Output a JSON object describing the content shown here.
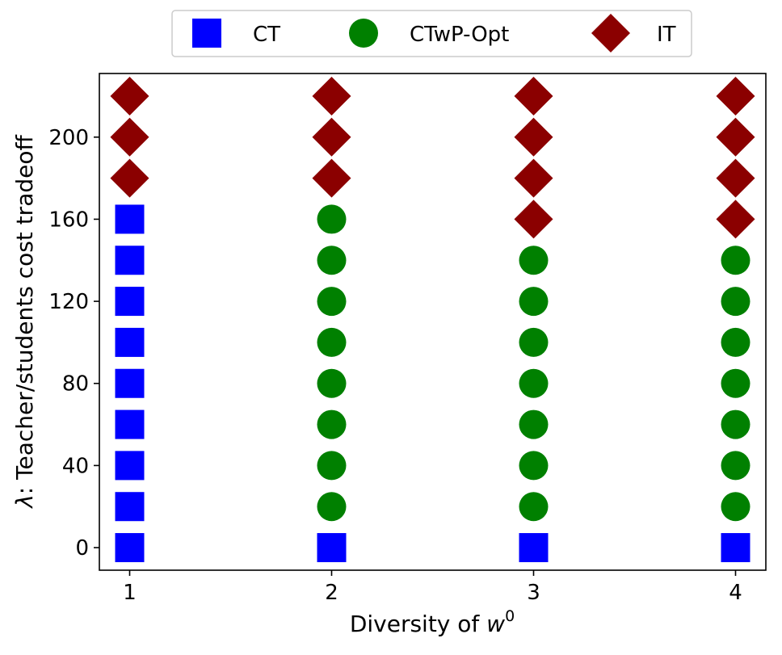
{
  "chart_data": {
    "type": "scatter",
    "title": "",
    "xlabel": {
      "prefix": "Diversity of ",
      "var": "w",
      "superscript": "0"
    },
    "ylabel": {
      "lambda": "λ",
      "rest": ": Teacher/students cost tradeoff"
    },
    "xlim": [
      0.85,
      4.15
    ],
    "ylim": [
      -11,
      231
    ],
    "x_ticks": [
      1,
      2,
      3,
      4
    ],
    "y_ticks": [
      0,
      40,
      80,
      120,
      160,
      200
    ],
    "legend_position": "top-center",
    "series": [
      {
        "name": "CT",
        "marker": "square",
        "color": "#0000ff",
        "points": [
          {
            "x": 1,
            "y": 0
          },
          {
            "x": 1,
            "y": 20
          },
          {
            "x": 1,
            "y": 40
          },
          {
            "x": 1,
            "y": 60
          },
          {
            "x": 1,
            "y": 80
          },
          {
            "x": 1,
            "y": 100
          },
          {
            "x": 1,
            "y": 120
          },
          {
            "x": 1,
            "y": 140
          },
          {
            "x": 1,
            "y": 160
          },
          {
            "x": 2,
            "y": 0
          },
          {
            "x": 3,
            "y": 0
          },
          {
            "x": 4,
            "y": 0
          }
        ]
      },
      {
        "name": "CTwP-Opt",
        "marker": "circle",
        "color": "#008000",
        "points": [
          {
            "x": 2,
            "y": 20
          },
          {
            "x": 2,
            "y": 40
          },
          {
            "x": 2,
            "y": 60
          },
          {
            "x": 2,
            "y": 80
          },
          {
            "x": 2,
            "y": 100
          },
          {
            "x": 2,
            "y": 120
          },
          {
            "x": 2,
            "y": 140
          },
          {
            "x": 2,
            "y": 160
          },
          {
            "x": 3,
            "y": 20
          },
          {
            "x": 3,
            "y": 40
          },
          {
            "x": 3,
            "y": 60
          },
          {
            "x": 3,
            "y": 80
          },
          {
            "x": 3,
            "y": 100
          },
          {
            "x": 3,
            "y": 120
          },
          {
            "x": 3,
            "y": 140
          },
          {
            "x": 4,
            "y": 20
          },
          {
            "x": 4,
            "y": 40
          },
          {
            "x": 4,
            "y": 60
          },
          {
            "x": 4,
            "y": 80
          },
          {
            "x": 4,
            "y": 100
          },
          {
            "x": 4,
            "y": 120
          },
          {
            "x": 4,
            "y": 140
          }
        ]
      },
      {
        "name": "IT",
        "marker": "diamond",
        "color": "#8b0000",
        "points": [
          {
            "x": 1,
            "y": 180
          },
          {
            "x": 1,
            "y": 200
          },
          {
            "x": 1,
            "y": 220
          },
          {
            "x": 2,
            "y": 180
          },
          {
            "x": 2,
            "y": 200
          },
          {
            "x": 2,
            "y": 220
          },
          {
            "x": 3,
            "y": 160
          },
          {
            "x": 3,
            "y": 180
          },
          {
            "x": 3,
            "y": 200
          },
          {
            "x": 3,
            "y": 220
          },
          {
            "x": 4,
            "y": 160
          },
          {
            "x": 4,
            "y": 180
          },
          {
            "x": 4,
            "y": 200
          },
          {
            "x": 4,
            "y": 220
          }
        ]
      }
    ]
  }
}
